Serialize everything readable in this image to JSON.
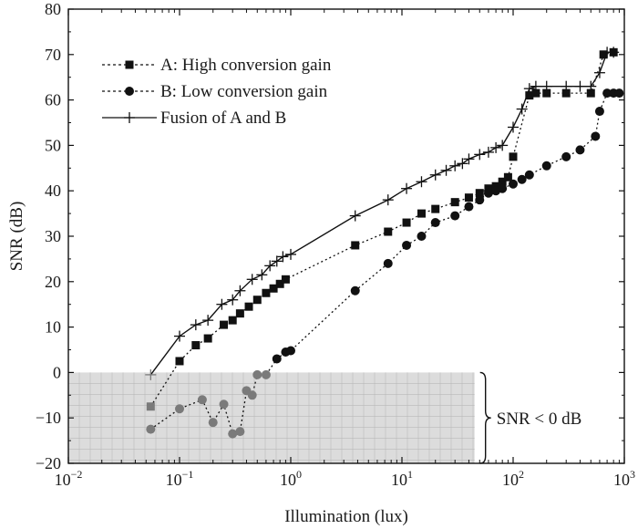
{
  "chart_data": {
    "type": "line",
    "title": "",
    "xlabel": "Illumination (lux)",
    "ylabel": "SNR (dB)",
    "xscale": "log",
    "xlim": [
      0.01,
      1000
    ],
    "ylim": [
      -20,
      80
    ],
    "x_ticks": [
      {
        "base": "10",
        "exp": "−2"
      },
      {
        "base": "10",
        "exp": "−1"
      },
      {
        "base": "10",
        "exp": "0"
      },
      {
        "base": "10",
        "exp": "1"
      },
      {
        "base": "10",
        "exp": "2"
      },
      {
        "base": "10",
        "exp": "3"
      }
    ],
    "y_ticks": [
      "−20",
      "−10",
      "0",
      "10",
      "20",
      "30",
      "40",
      "50",
      "60",
      "70",
      "80"
    ],
    "grid": false,
    "legend_position": "top-left",
    "series": [
      {
        "name": "A: High conversion gain",
        "marker": "square",
        "line": "dotted",
        "color": "#111111",
        "points": [
          [
            0.055,
            -7.5
          ],
          [
            0.1,
            2.5
          ],
          [
            0.14,
            6
          ],
          [
            0.18,
            7.5
          ],
          [
            0.25,
            10.5
          ],
          [
            0.3,
            11.5
          ],
          [
            0.35,
            13
          ],
          [
            0.42,
            14.5
          ],
          [
            0.5,
            16
          ],
          [
            0.6,
            17.5
          ],
          [
            0.7,
            18.5
          ],
          [
            0.8,
            19.5
          ],
          [
            0.9,
            20.5
          ],
          [
            3.8,
            28
          ],
          [
            7.5,
            31
          ],
          [
            11,
            33
          ],
          [
            15,
            35
          ],
          [
            20,
            36
          ],
          [
            30,
            37.5
          ],
          [
            40,
            38.5
          ],
          [
            50,
            39.5
          ],
          [
            60,
            40.5
          ],
          [
            70,
            41
          ],
          [
            80,
            42
          ],
          [
            90,
            43
          ],
          [
            100,
            47.5
          ],
          [
            140,
            61
          ],
          [
            160,
            61.5
          ],
          [
            200,
            61.5
          ],
          [
            300,
            61.5
          ],
          [
            500,
            61.5
          ],
          [
            650,
            70
          ],
          [
            800,
            70.5
          ]
        ]
      },
      {
        "name": "B: Low conversion gain",
        "marker": "circle",
        "line": "dotted",
        "color": "#111111",
        "points": [
          [
            0.055,
            -12.5
          ],
          [
            0.1,
            -8
          ],
          [
            0.16,
            -6
          ],
          [
            0.2,
            -11
          ],
          [
            0.25,
            -7
          ],
          [
            0.3,
            -13.5
          ],
          [
            0.35,
            -13
          ],
          [
            0.4,
            -4
          ],
          [
            0.45,
            -5
          ],
          [
            0.5,
            -0.5
          ],
          [
            0.6,
            -0.5
          ],
          [
            0.75,
            3
          ],
          [
            0.9,
            4.5
          ],
          [
            1,
            4.8
          ],
          [
            3.8,
            18
          ],
          [
            7.5,
            24
          ],
          [
            11,
            28
          ],
          [
            15,
            30
          ],
          [
            20,
            33
          ],
          [
            30,
            34.5
          ],
          [
            40,
            36.5
          ],
          [
            50,
            38
          ],
          [
            60,
            39.5
          ],
          [
            70,
            40
          ],
          [
            80,
            40.5
          ],
          [
            100,
            41.5
          ],
          [
            120,
            42.5
          ],
          [
            140,
            43.5
          ],
          [
            200,
            45.5
          ],
          [
            300,
            47.5
          ],
          [
            400,
            49
          ],
          [
            550,
            52
          ],
          [
            600,
            57.5
          ],
          [
            700,
            61.5
          ],
          [
            800,
            61.5
          ],
          [
            900,
            61.5
          ]
        ]
      },
      {
        "name": "Fusion of A and B",
        "marker": "plus",
        "line": "solid",
        "color": "#111111",
        "points": [
          [
            0.055,
            -0.5
          ],
          [
            0.1,
            8
          ],
          [
            0.14,
            10.5
          ],
          [
            0.18,
            11.5
          ],
          [
            0.24,
            15
          ],
          [
            0.3,
            16
          ],
          [
            0.35,
            18
          ],
          [
            0.45,
            20.5
          ],
          [
            0.55,
            21.5
          ],
          [
            0.65,
            23.5
          ],
          [
            0.75,
            24.5
          ],
          [
            0.85,
            25.5
          ],
          [
            1,
            26
          ],
          [
            3.8,
            34.5
          ],
          [
            7.5,
            38
          ],
          [
            11,
            40.5
          ],
          [
            15,
            42
          ],
          [
            20,
            43.5
          ],
          [
            25,
            44.5
          ],
          [
            30,
            45.5
          ],
          [
            35,
            46
          ],
          [
            40,
            47
          ],
          [
            50,
            48
          ],
          [
            60,
            48.5
          ],
          [
            70,
            49.5
          ],
          [
            80,
            50
          ],
          [
            100,
            54
          ],
          [
            120,
            58
          ],
          [
            140,
            62.5
          ],
          [
            160,
            63
          ],
          [
            200,
            63
          ],
          [
            300,
            63
          ],
          [
            400,
            63
          ],
          [
            500,
            63
          ],
          [
            600,
            66
          ],
          [
            700,
            70.5
          ],
          [
            800,
            70.5
          ]
        ]
      }
    ],
    "annotations": [
      {
        "text": "SNR < 0 dB",
        "region": {
          "x": [
            0.01,
            45
          ],
          "y": [
            -20,
            0
          ]
        },
        "color": "#dcdcdc"
      }
    ]
  }
}
